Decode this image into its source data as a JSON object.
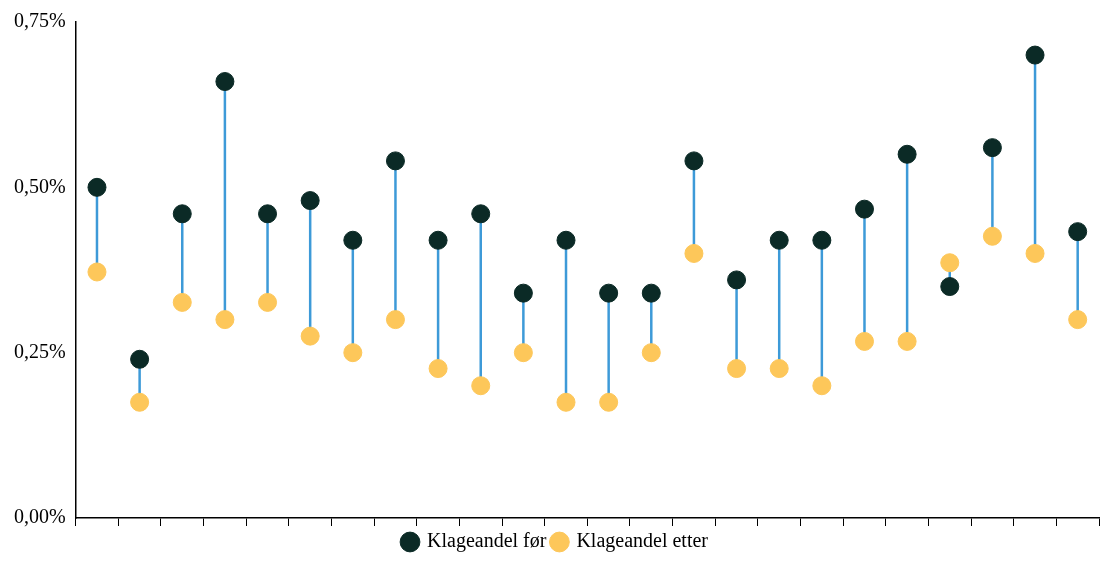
{
  "chart_data": {
    "type": "scatter",
    "categories": [
      null,
      null,
      null,
      null,
      null,
      null,
      null,
      null,
      null,
      null,
      null,
      null,
      null,
      null,
      null,
      null,
      null,
      null,
      null,
      null,
      null,
      null,
      null,
      null
    ],
    "series": [
      {
        "name": "Klageandel før",
        "color": "#0b2a26",
        "values": [
          0.5,
          0.24,
          0.46,
          0.66,
          0.46,
          0.48,
          0.42,
          0.54,
          0.42,
          0.46,
          0.34,
          0.42,
          0.34,
          0.34,
          0.54,
          0.36,
          0.42,
          0.42,
          0.467,
          0.55,
          0.35,
          0.56,
          0.7,
          0.433
        ]
      },
      {
        "name": "Klageandel etter",
        "color": "#fdc75a",
        "values": [
          0.372,
          0.175,
          0.326,
          0.3,
          0.326,
          0.275,
          0.25,
          0.3,
          0.226,
          0.2,
          0.25,
          0.175,
          0.175,
          0.25,
          0.4,
          0.226,
          0.226,
          0.2,
          0.267,
          0.267,
          0.386,
          0.426,
          0.4,
          0.3
        ]
      }
    ],
    "ylim": [
      0,
      0.75
    ],
    "yticks": [
      {
        "value": 0,
        "label": "0,00%"
      },
      {
        "value": 0.25,
        "label": "0,25%"
      },
      {
        "value": 0.5,
        "label": "0,50%"
      },
      {
        "value": 0.75,
        "label": "0,75%"
      }
    ],
    "tick_labels": "y",
    "grid": false,
    "legend": "bottom",
    "marker": "circle"
  }
}
